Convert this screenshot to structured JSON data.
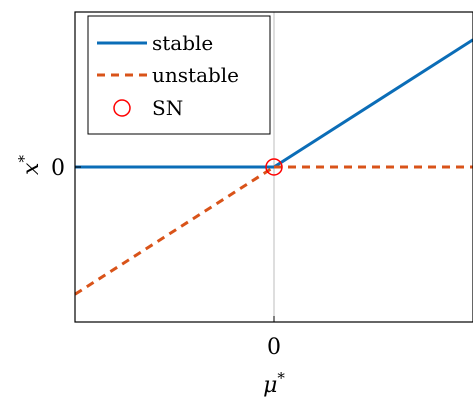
{
  "chart_data": {
    "type": "line",
    "title": "",
    "xlabel": "μ",
    "xlabel_sup": "*",
    "ylabel": "x",
    "ylabel_sup": "*",
    "xlim": [
      -1,
      1
    ],
    "ylim": [
      -0.95,
      0.95
    ],
    "x_ticks": [
      {
        "value": 0,
        "label": "0"
      }
    ],
    "y_ticks": [
      {
        "value": 0,
        "label": "0"
      }
    ],
    "grid": "vertical line at x = 0",
    "legend_position": "top-left",
    "series": [
      {
        "name": "stable",
        "style": "solid",
        "color": "#0b6db7",
        "segments": [
          [
            [
              -1,
              0
            ],
            [
              0,
              0
            ]
          ],
          [
            [
              0,
              0
            ],
            [
              1,
              0.78
            ]
          ]
        ]
      },
      {
        "name": "unstable",
        "style": "dashed",
        "color": "#d95319",
        "segments": [
          [
            [
              -1,
              -0.78
            ],
            [
              0,
              0
            ]
          ],
          [
            [
              0,
              0
            ],
            [
              1,
              0
            ]
          ]
        ]
      }
    ],
    "markers": [
      {
        "name": "SN",
        "symbol": "open-circle",
        "color": "#ff0000",
        "x": 0,
        "y": 0
      }
    ]
  }
}
